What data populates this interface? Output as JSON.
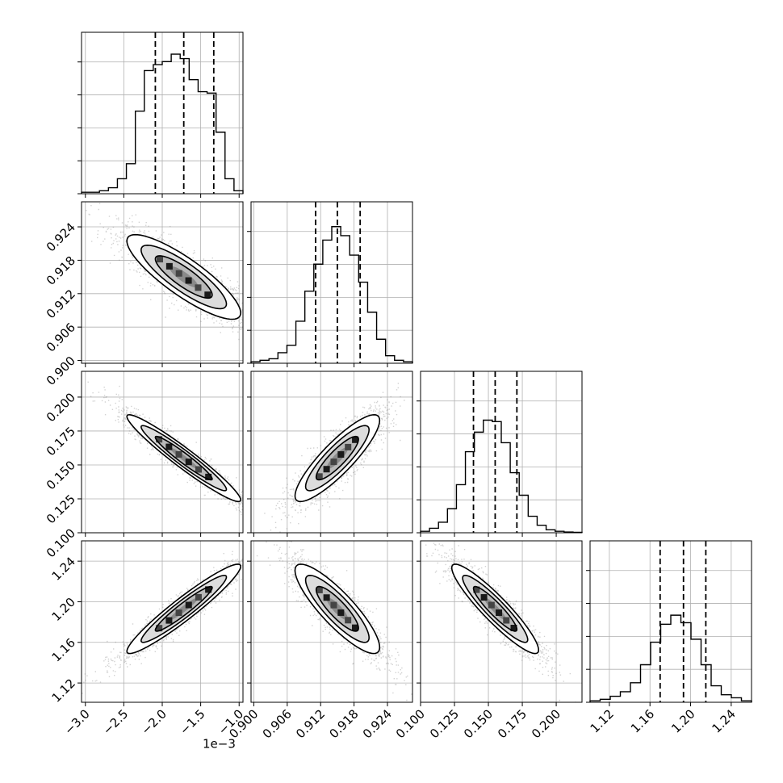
{
  "chart_data": {
    "type": "corner",
    "title": "",
    "parameters": [
      {
        "range": [
          -3.05,
          -0.95
        ],
        "ticks": [
          -3.0,
          -2.5,
          -2.0,
          -1.5,
          -1.0
        ],
        "tick_labels": [
          "−3.0",
          "−2.5",
          "−2.0",
          "−1.5",
          "−1.0"
        ],
        "offset_label": "1e−3",
        "mean": -1.72,
        "std": 0.37,
        "quantiles": [
          -2.09,
          -1.72,
          -1.33
        ],
        "histogram": [
          0.01,
          0.01,
          0.02,
          0.04,
          0.1,
          0.2,
          0.55,
          0.82,
          0.86,
          0.88,
          0.93,
          0.9,
          0.76,
          0.68,
          0.67,
          0.41,
          0.1,
          0.02
        ]
      },
      {
        "range": [
          0.8995,
          0.9285
        ],
        "ticks": [
          0.9,
          0.906,
          0.912,
          0.918,
          0.924
        ],
        "tick_labels": [
          "0.900",
          "0.906",
          "0.912",
          "0.918",
          "0.924"
        ],
        "mean": 0.915,
        "std": 0.0038,
        "quantiles": [
          0.9111,
          0.915,
          0.9191
        ],
        "histogram": [
          0.01,
          0.02,
          0.03,
          0.07,
          0.12,
          0.28,
          0.48,
          0.66,
          0.82,
          0.91,
          0.85,
          0.72,
          0.54,
          0.34,
          0.16,
          0.05,
          0.02,
          0.01
        ]
      },
      {
        "range": [
          0.1,
          0.219
        ],
        "ticks": [
          0.1,
          0.125,
          0.15,
          0.175,
          0.2
        ],
        "tick_labels": [
          "0.100",
          "0.125",
          "0.150",
          "0.175",
          "0.200"
        ],
        "mean": 0.155,
        "std": 0.016,
        "quantiles": [
          0.139,
          0.155,
          0.171
        ],
        "histogram": [
          0.01,
          0.03,
          0.07,
          0.16,
          0.32,
          0.54,
          0.67,
          0.75,
          0.74,
          0.6,
          0.4,
          0.25,
          0.11,
          0.05,
          0.02,
          0.01,
          0.005,
          0.003
        ]
      },
      {
        "range": [
          1.101,
          1.26
        ],
        "ticks": [
          1.12,
          1.16,
          1.2,
          1.24
        ],
        "tick_labels": [
          "1.12",
          "1.16",
          "1.20",
          "1.24"
        ],
        "mean": 1.193,
        "std": 0.022,
        "quantiles": [
          1.17,
          1.193,
          1.215
        ],
        "histogram": [
          0.01,
          0.02,
          0.04,
          0.07,
          0.13,
          0.25,
          0.4,
          0.52,
          0.58,
          0.53,
          0.42,
          0.25,
          0.11,
          0.05,
          0.03,
          0.01
        ]
      }
    ],
    "correlations": {
      "1-0": -0.85,
      "2-0": -0.96,
      "2-1": 0.87,
      "3-0": 0.95,
      "3-1": -0.86,
      "3-2": -0.92
    },
    "levels": [
      "0.5",
      "1.0",
      "1.5",
      "2.0"
    ],
    "grid": true,
    "colors": {
      "line": "#000000",
      "points": "#7f7f7f",
      "grid": "#b0b0b0"
    }
  }
}
